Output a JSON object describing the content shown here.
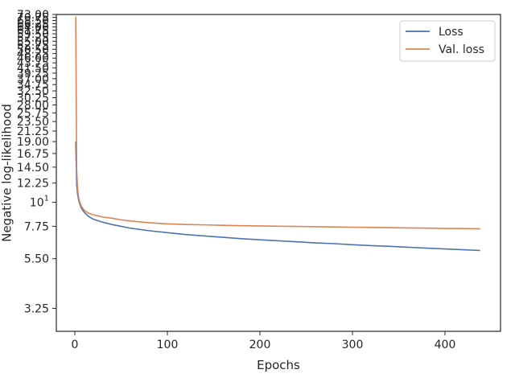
{
  "chart_data": {
    "type": "line",
    "title": "",
    "xlabel": "Epochs",
    "ylabel": "Negative log-likelihood",
    "yscale": "log",
    "xlim": [
      -20,
      460
    ],
    "ylim": [
      2.55,
      73.0
    ],
    "grid": false,
    "legend_placement": "top-right",
    "x_ticks": [
      0,
      100,
      200,
      300,
      400
    ],
    "x_tick_labels": [
      "0",
      "100",
      "200",
      "300",
      "400"
    ],
    "y_ticks": [
      3.25,
      5.5,
      7.75,
      10,
      12.25,
      14.5,
      16.75,
      19.0,
      21.25,
      23.5,
      25.75,
      28.0,
      30.25,
      32.5,
      34.75,
      37.0,
      39.25,
      41.5,
      43.75,
      46.0,
      48.25,
      50.5,
      52.75,
      55.0,
      57.25,
      59.5,
      61.75,
      64.0,
      66.25,
      68.5,
      70.75,
      73.0
    ],
    "y_tick_labels": [
      "3.25",
      "5.50",
      "7.75",
      "10^1",
      "12.25",
      "14.50",
      "16.75",
      "19.00",
      "21.25",
      "23.50",
      "25.75",
      "28.00",
      "30.25",
      "32.50",
      "34.75",
      "37.00",
      "39.25",
      "41.50",
      "43.75",
      "46.00",
      "48.25",
      "50.50",
      "52.75",
      "55.00",
      "57.25",
      "59.50",
      "61.75",
      "64.00",
      "66.25",
      "68.50",
      "70.75",
      "73.00"
    ],
    "series": [
      {
        "name": "Loss",
        "color": "#4c72b0",
        "x": [
          1,
          2,
          3,
          4,
          5,
          7,
          10,
          15,
          20,
          30,
          40,
          50,
          60,
          80,
          100,
          120,
          140,
          160,
          180,
          200,
          220,
          240,
          260,
          280,
          300,
          320,
          340,
          360,
          380,
          400,
          420,
          438
        ],
        "y": [
          19.0,
          12.0,
          10.9,
          10.3,
          9.9,
          9.4,
          9.0,
          8.6,
          8.35,
          8.1,
          7.9,
          7.75,
          7.6,
          7.4,
          7.25,
          7.1,
          7.0,
          6.9,
          6.8,
          6.72,
          6.65,
          6.58,
          6.5,
          6.45,
          6.38,
          6.32,
          6.27,
          6.21,
          6.15,
          6.1,
          6.05,
          6.0
        ]
      },
      {
        "name": "Val. loss",
        "color": "#dd8452",
        "x": [
          1,
          2,
          3,
          4,
          5,
          7,
          10,
          15,
          20,
          30,
          40,
          50,
          60,
          80,
          100,
          120,
          140,
          160,
          180,
          200,
          220,
          240,
          260,
          280,
          300,
          320,
          340,
          360,
          380,
          400,
          420,
          438
        ],
        "y": [
          71.5,
          14.0,
          11.5,
          10.6,
          10.1,
          9.6,
          9.2,
          8.9,
          8.75,
          8.55,
          8.45,
          8.3,
          8.2,
          8.05,
          7.95,
          7.9,
          7.87,
          7.83,
          7.8,
          7.78,
          7.76,
          7.74,
          7.72,
          7.7,
          7.68,
          7.66,
          7.64,
          7.62,
          7.6,
          7.58,
          7.57,
          7.55
        ]
      }
    ]
  }
}
